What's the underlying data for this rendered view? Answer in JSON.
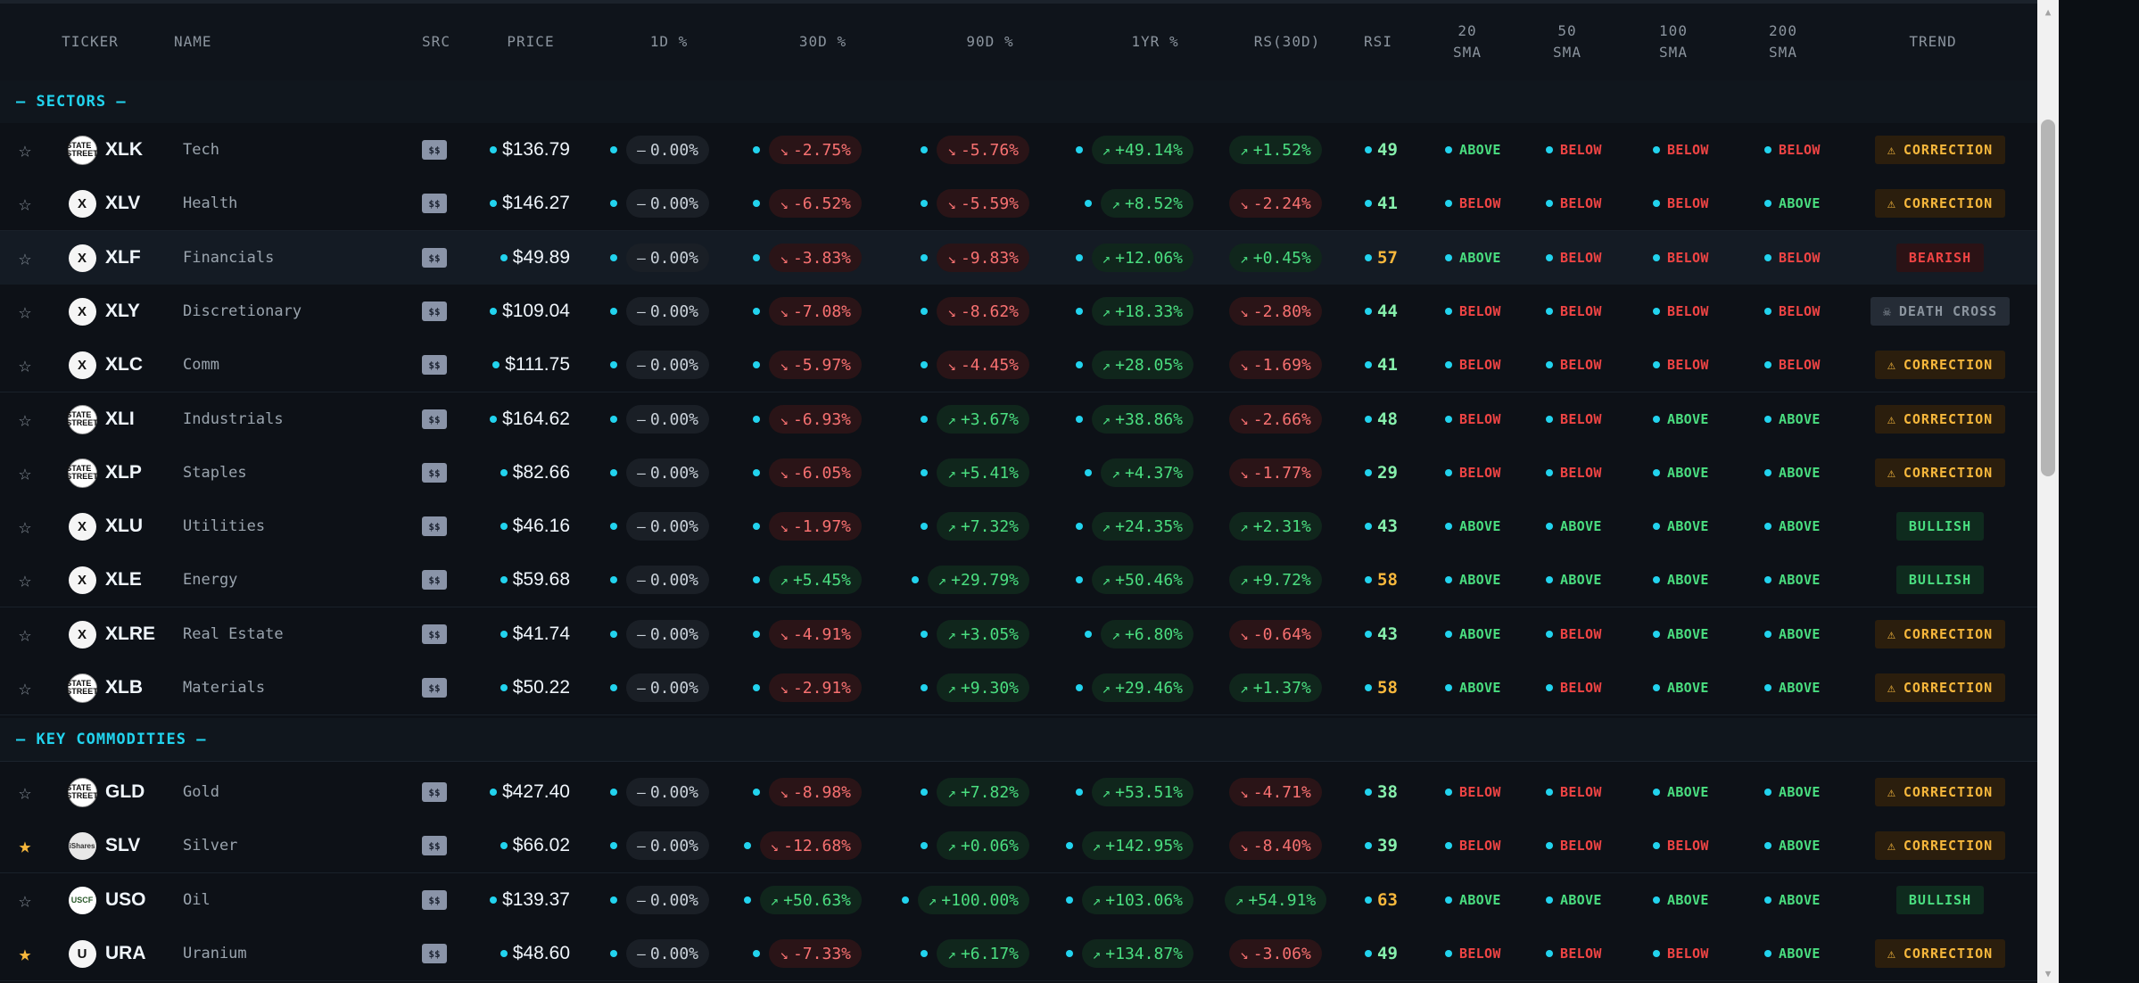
{
  "columns": {
    "ticker": "TICKER",
    "name": "NAME",
    "src": "SRC",
    "price": "PRICE",
    "d1": "1D %",
    "d30": "30D %",
    "d90": "90D %",
    "yr": "1YR %",
    "rs": "RS(30D)",
    "rsi": "RSI",
    "sma20": "20\nSMA",
    "sma50": "50\nSMA",
    "sma100": "100\nSMA",
    "sma200": "200\nSMA",
    "trend": "TREND"
  },
  "sections": [
    {
      "label": "— SECTORS —",
      "rows": [
        {
          "starred": false,
          "logo": "state-street",
          "logo_text": "STATE STREET",
          "ticker": "XLK",
          "name": "Tech",
          "src": "$$",
          "price": "$136.79",
          "d1": "0.00%",
          "d30": "-2.75%",
          "d90": "-5.76%",
          "yr": "+49.14%",
          "rs": "+1.52%",
          "rsi": "49",
          "sma20": "ABOVE",
          "sma50": "BELOW",
          "sma100": "BELOW",
          "sma200": "BELOW",
          "trend": "CORRECTION"
        },
        {
          "starred": false,
          "logo": "x",
          "logo_text": "X",
          "ticker": "XLV",
          "name": "Health",
          "src": "$$",
          "price": "$146.27",
          "d1": "0.00%",
          "d30": "-6.52%",
          "d90": "-5.59%",
          "yr": "+8.52%",
          "rs": "-2.24%",
          "rsi": "41",
          "sma20": "BELOW",
          "sma50": "BELOW",
          "sma100": "BELOW",
          "sma200": "ABOVE",
          "trend": "CORRECTION"
        },
        {
          "starred": false,
          "logo": "x",
          "logo_text": "X",
          "ticker": "XLF",
          "name": "Financials",
          "src": "$$",
          "price": "$49.89",
          "d1": "0.00%",
          "d30": "-3.83%",
          "d90": "-9.83%",
          "yr": "+12.06%",
          "rs": "+0.45%",
          "rsi": "57",
          "sma20": "ABOVE",
          "sma50": "BELOW",
          "sma100": "BELOW",
          "sma200": "BELOW",
          "trend": "BEARISH",
          "highlight": true
        },
        {
          "starred": false,
          "logo": "x",
          "logo_text": "X",
          "ticker": "XLY",
          "name": "Discretionary",
          "src": "$$",
          "price": "$109.04",
          "d1": "0.00%",
          "d30": "-7.08%",
          "d90": "-8.62%",
          "yr": "+18.33%",
          "rs": "-2.80%",
          "rsi": "44",
          "sma20": "BELOW",
          "sma50": "BELOW",
          "sma100": "BELOW",
          "sma200": "BELOW",
          "trend": "DEATH CROSS"
        },
        {
          "starred": false,
          "logo": "x",
          "logo_text": "X",
          "ticker": "XLC",
          "name": "Comm",
          "src": "$$",
          "price": "$111.75",
          "d1": "0.00%",
          "d30": "-5.97%",
          "d90": "-4.45%",
          "yr": "+28.05%",
          "rs": "-1.69%",
          "rsi": "41",
          "sma20": "BELOW",
          "sma50": "BELOW",
          "sma100": "BELOW",
          "sma200": "BELOW",
          "trend": "CORRECTION"
        },
        {
          "starred": false,
          "logo": "state-street",
          "logo_text": "STATE STREET",
          "ticker": "XLI",
          "name": "Industrials",
          "src": "$$",
          "price": "$164.62",
          "d1": "0.00%",
          "d30": "-6.93%",
          "d90": "+3.67%",
          "yr": "+38.86%",
          "rs": "-2.66%",
          "rsi": "48",
          "sma20": "BELOW",
          "sma50": "BELOW",
          "sma100": "ABOVE",
          "sma200": "ABOVE",
          "trend": "CORRECTION"
        },
        {
          "starred": false,
          "logo": "state-street",
          "logo_text": "STATE STREET",
          "ticker": "XLP",
          "name": "Staples",
          "src": "$$",
          "price": "$82.66",
          "d1": "0.00%",
          "d30": "-6.05%",
          "d90": "+5.41%",
          "yr": "+4.37%",
          "rs": "-1.77%",
          "rsi": "29",
          "sma20": "BELOW",
          "sma50": "BELOW",
          "sma100": "ABOVE",
          "sma200": "ABOVE",
          "trend": "CORRECTION"
        },
        {
          "starred": false,
          "logo": "x",
          "logo_text": "X",
          "ticker": "XLU",
          "name": "Utilities",
          "src": "$$",
          "price": "$46.16",
          "d1": "0.00%",
          "d30": "-1.97%",
          "d90": "+7.32%",
          "yr": "+24.35%",
          "rs": "+2.31%",
          "rsi": "43",
          "sma20": "ABOVE",
          "sma50": "ABOVE",
          "sma100": "ABOVE",
          "sma200": "ABOVE",
          "trend": "BULLISH"
        },
        {
          "starred": false,
          "logo": "x",
          "logo_text": "X",
          "ticker": "XLE",
          "name": "Energy",
          "src": "$$",
          "price": "$59.68",
          "d1": "0.00%",
          "d30": "+5.45%",
          "d90": "+29.79%",
          "yr": "+50.46%",
          "rs": "+9.72%",
          "rsi": "58",
          "sma20": "ABOVE",
          "sma50": "ABOVE",
          "sma100": "ABOVE",
          "sma200": "ABOVE",
          "trend": "BULLISH"
        },
        {
          "starred": false,
          "logo": "x",
          "logo_text": "X",
          "ticker": "XLRE",
          "name": "Real Estate",
          "src": "$$",
          "price": "$41.74",
          "d1": "0.00%",
          "d30": "-4.91%",
          "d90": "+3.05%",
          "yr": "+6.80%",
          "rs": "-0.64%",
          "rsi": "43",
          "sma20": "ABOVE",
          "sma50": "BELOW",
          "sma100": "ABOVE",
          "sma200": "ABOVE",
          "trend": "CORRECTION"
        },
        {
          "starred": false,
          "logo": "state-street",
          "logo_text": "STATE STREET",
          "ticker": "XLB",
          "name": "Materials",
          "src": "$$",
          "price": "$50.22",
          "d1": "0.00%",
          "d30": "-2.91%",
          "d90": "+9.30%",
          "yr": "+29.46%",
          "rs": "+1.37%",
          "rsi": "58",
          "sma20": "ABOVE",
          "sma50": "BELOW",
          "sma100": "ABOVE",
          "sma200": "ABOVE",
          "trend": "CORRECTION"
        }
      ]
    },
    {
      "label": "— KEY COMMODITIES —",
      "rows": [
        {
          "starred": false,
          "logo": "state-street",
          "logo_text": "STATE STREET",
          "ticker": "GLD",
          "name": "Gold",
          "src": "$$",
          "price": "$427.40",
          "d1": "0.00%",
          "d30": "-8.98%",
          "d90": "+7.82%",
          "yr": "+53.51%",
          "rs": "-4.71%",
          "rsi": "38",
          "sma20": "BELOW",
          "sma50": "BELOW",
          "sma100": "ABOVE",
          "sma200": "ABOVE",
          "trend": "CORRECTION"
        },
        {
          "starred": true,
          "logo": "ishares",
          "logo_text": "iShares",
          "ticker": "SLV",
          "name": "Silver",
          "src": "$$",
          "price": "$66.02",
          "d1": "0.00%",
          "d30": "-12.68%",
          "d90": "+0.06%",
          "yr": "+142.95%",
          "rs": "-8.40%",
          "rsi": "39",
          "sma20": "BELOW",
          "sma50": "BELOW",
          "sma100": "BELOW",
          "sma200": "ABOVE",
          "trend": "CORRECTION"
        },
        {
          "starred": false,
          "logo": "uscf",
          "logo_text": "USCF",
          "ticker": "USO",
          "name": "Oil",
          "src": "$$",
          "price": "$139.37",
          "d1": "0.00%",
          "d30": "+50.63%",
          "d90": "+100.00%",
          "yr": "+103.06%",
          "rs": "+54.91%",
          "rsi": "63",
          "sma20": "ABOVE",
          "sma50": "ABOVE",
          "sma100": "ABOVE",
          "sma200": "ABOVE",
          "trend": "BULLISH"
        },
        {
          "starred": true,
          "logo": "u",
          "logo_text": "U",
          "ticker": "URA",
          "name": "Uranium",
          "src": "$$",
          "price": "$48.60",
          "d1": "0.00%",
          "d30": "-7.33%",
          "d90": "+6.17%",
          "yr": "+134.87%",
          "rs": "-3.06%",
          "rsi": "49",
          "sma20": "BELOW",
          "sma50": "BELOW",
          "sma100": "BELOW",
          "sma200": "ABOVE",
          "trend": "CORRECTION"
        }
      ]
    }
  ],
  "colors": {
    "accent": "#22d3ee",
    "positive": "#4ade80",
    "negative": "#ef4444",
    "warning": "#f6b73c",
    "background": "#0d1117",
    "star_active": "#f6b73c"
  },
  "icons": {
    "star": "star-icon",
    "arrow_up": "trend-up-icon",
    "arrow_down": "trend-down-icon",
    "flat": "dash-icon",
    "warning": "warning-icon",
    "skull": "skull-icon"
  }
}
